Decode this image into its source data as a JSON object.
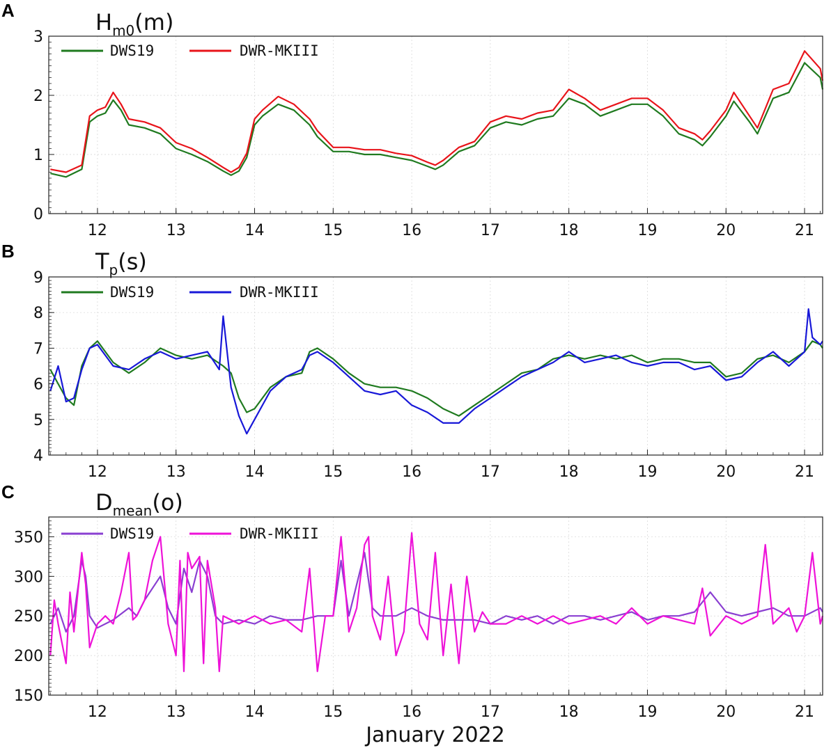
{
  "figure": {
    "xlabel": "January 2022",
    "x_ticks": [
      12,
      13,
      14,
      15,
      16,
      17,
      18,
      19,
      20,
      21
    ],
    "xlim": [
      11.38,
      21.23
    ]
  },
  "chart_data": [
    {
      "id": "A",
      "type": "line",
      "panel_letter": "A",
      "title_main": "H",
      "title_sub": "m0",
      "title_tail": "(m)",
      "ylim": [
        0,
        3
      ],
      "y_ticks": [
        0,
        1,
        2,
        3
      ],
      "legend": "top-left",
      "grid": true,
      "series": [
        {
          "name": "DWS19",
          "color": "#1f7a1f",
          "x": [
            11.4,
            11.6,
            11.8,
            11.9,
            12.0,
            12.1,
            12.2,
            12.3,
            12.4,
            12.6,
            12.8,
            13.0,
            13.2,
            13.4,
            13.6,
            13.7,
            13.8,
            13.9,
            14.0,
            14.1,
            14.3,
            14.5,
            14.7,
            14.8,
            15.0,
            15.2,
            15.4,
            15.6,
            15.8,
            16.0,
            16.2,
            16.3,
            16.4,
            16.6,
            16.8,
            17.0,
            17.2,
            17.4,
            17.6,
            17.8,
            18.0,
            18.2,
            18.4,
            18.6,
            18.8,
            19.0,
            19.2,
            19.4,
            19.6,
            19.7,
            19.8,
            20.0,
            20.1,
            20.3,
            20.4,
            20.6,
            20.8,
            21.0,
            21.2,
            21.23
          ],
          "y": [
            0.68,
            0.62,
            0.75,
            1.55,
            1.65,
            1.7,
            1.92,
            1.75,
            1.5,
            1.45,
            1.35,
            1.1,
            1.0,
            0.88,
            0.72,
            0.65,
            0.72,
            0.95,
            1.5,
            1.65,
            1.85,
            1.75,
            1.5,
            1.3,
            1.05,
            1.05,
            1.0,
            1.0,
            0.95,
            0.9,
            0.8,
            0.75,
            0.82,
            1.05,
            1.15,
            1.45,
            1.55,
            1.5,
            1.6,
            1.65,
            1.95,
            1.85,
            1.65,
            1.75,
            1.85,
            1.85,
            1.65,
            1.35,
            1.25,
            1.15,
            1.3,
            1.65,
            1.9,
            1.55,
            1.35,
            1.95,
            2.05,
            2.55,
            2.3,
            2.1
          ]
        },
        {
          "name": "DWR-MKIII",
          "color": "#e8141a",
          "x": [
            11.4,
            11.6,
            11.8,
            11.9,
            12.0,
            12.1,
            12.2,
            12.3,
            12.4,
            12.6,
            12.8,
            13.0,
            13.2,
            13.4,
            13.6,
            13.7,
            13.8,
            13.9,
            14.0,
            14.1,
            14.3,
            14.5,
            14.7,
            14.8,
            15.0,
            15.2,
            15.4,
            15.6,
            15.8,
            16.0,
            16.2,
            16.3,
            16.4,
            16.6,
            16.8,
            17.0,
            17.2,
            17.4,
            17.6,
            17.8,
            18.0,
            18.2,
            18.4,
            18.6,
            18.8,
            19.0,
            19.2,
            19.4,
            19.6,
            19.7,
            19.8,
            20.0,
            20.1,
            20.3,
            20.4,
            20.6,
            20.8,
            21.0,
            21.2,
            21.23
          ],
          "y": [
            0.75,
            0.7,
            0.82,
            1.65,
            1.75,
            1.8,
            2.05,
            1.85,
            1.6,
            1.55,
            1.45,
            1.2,
            1.1,
            0.95,
            0.78,
            0.7,
            0.78,
            1.02,
            1.6,
            1.75,
            1.98,
            1.85,
            1.6,
            1.4,
            1.12,
            1.12,
            1.08,
            1.08,
            1.02,
            0.98,
            0.87,
            0.82,
            0.9,
            1.12,
            1.22,
            1.55,
            1.65,
            1.6,
            1.7,
            1.75,
            2.1,
            1.95,
            1.75,
            1.85,
            1.95,
            1.95,
            1.75,
            1.45,
            1.35,
            1.25,
            1.4,
            1.75,
            2.05,
            1.65,
            1.45,
            2.1,
            2.2,
            2.75,
            2.45,
            2.25
          ]
        }
      ]
    },
    {
      "id": "B",
      "type": "line",
      "panel_letter": "B",
      "title_main": "T",
      "title_sub": "p",
      "title_tail": "(s)",
      "ylim": [
        4,
        9
      ],
      "y_ticks": [
        4,
        5,
        6,
        7,
        8,
        9
      ],
      "legend": "top-left",
      "grid": true,
      "series": [
        {
          "name": "DWS19",
          "color": "#1f7a1f",
          "x": [
            11.4,
            11.5,
            11.6,
            11.7,
            11.8,
            11.9,
            12.0,
            12.2,
            12.4,
            12.6,
            12.8,
            13.0,
            13.2,
            13.4,
            13.6,
            13.7,
            13.8,
            13.9,
            14.0,
            14.2,
            14.4,
            14.6,
            14.7,
            14.8,
            15.0,
            15.2,
            15.4,
            15.6,
            15.8,
            16.0,
            16.2,
            16.4,
            16.6,
            16.8,
            17.0,
            17.2,
            17.4,
            17.6,
            17.8,
            18.0,
            18.2,
            18.4,
            18.6,
            18.8,
            19.0,
            19.2,
            19.4,
            19.6,
            19.8,
            20.0,
            20.2,
            20.4,
            20.6,
            20.8,
            21.0,
            21.1,
            21.2,
            21.23
          ],
          "y": [
            6.4,
            6.0,
            5.6,
            5.4,
            6.5,
            7.0,
            7.2,
            6.6,
            6.3,
            6.6,
            7.0,
            6.8,
            6.7,
            6.8,
            6.5,
            6.3,
            5.6,
            5.2,
            5.3,
            5.9,
            6.2,
            6.3,
            6.9,
            7.0,
            6.7,
            6.3,
            6.0,
            5.9,
            5.9,
            5.8,
            5.6,
            5.3,
            5.1,
            5.4,
            5.7,
            6.0,
            6.3,
            6.4,
            6.7,
            6.8,
            6.7,
            6.8,
            6.7,
            6.8,
            6.6,
            6.7,
            6.7,
            6.6,
            6.6,
            6.2,
            6.3,
            6.7,
            6.8,
            6.6,
            6.9,
            7.2,
            7.1,
            7.0
          ]
        },
        {
          "name": "DWR-MKIII",
          "color": "#1818d8",
          "x": [
            11.4,
            11.5,
            11.6,
            11.7,
            11.8,
            11.9,
            12.0,
            12.2,
            12.4,
            12.6,
            12.8,
            13.0,
            13.2,
            13.4,
            13.55,
            13.6,
            13.7,
            13.8,
            13.9,
            14.0,
            14.2,
            14.4,
            14.6,
            14.7,
            14.8,
            15.0,
            15.2,
            15.4,
            15.6,
            15.8,
            16.0,
            16.2,
            16.4,
            16.6,
            16.8,
            17.0,
            17.2,
            17.4,
            17.6,
            17.8,
            18.0,
            18.2,
            18.4,
            18.6,
            18.8,
            19.0,
            19.2,
            19.4,
            19.6,
            19.8,
            20.0,
            20.2,
            20.4,
            20.6,
            20.8,
            21.0,
            21.05,
            21.1,
            21.2,
            21.23
          ],
          "y": [
            5.8,
            6.5,
            5.5,
            5.6,
            6.4,
            7.0,
            7.1,
            6.5,
            6.4,
            6.7,
            6.9,
            6.7,
            6.8,
            6.9,
            6.4,
            7.9,
            5.9,
            5.1,
            4.6,
            5.0,
            5.8,
            6.2,
            6.4,
            6.8,
            6.9,
            6.6,
            6.2,
            5.8,
            5.7,
            5.8,
            5.4,
            5.2,
            4.9,
            4.9,
            5.3,
            5.6,
            5.9,
            6.2,
            6.4,
            6.6,
            6.9,
            6.6,
            6.7,
            6.8,
            6.6,
            6.5,
            6.6,
            6.6,
            6.4,
            6.5,
            6.1,
            6.2,
            6.6,
            6.9,
            6.5,
            6.9,
            8.1,
            7.3,
            7.1,
            7.2
          ]
        }
      ]
    },
    {
      "id": "C",
      "type": "line",
      "panel_letter": "C",
      "title_main": "D",
      "title_sub": "mean",
      "title_tail": "(o)",
      "ylim": [
        150,
        375
      ],
      "y_ticks": [
        150,
        200,
        250,
        300,
        350
      ],
      "legend": "top-left",
      "grid": true,
      "series": [
        {
          "name": "DWS19",
          "color": "#8a3fd1",
          "x": [
            11.4,
            11.5,
            11.6,
            11.7,
            11.8,
            11.85,
            11.9,
            12.0,
            12.2,
            12.4,
            12.5,
            12.6,
            12.8,
            12.9,
            13.0,
            13.1,
            13.2,
            13.3,
            13.4,
            13.5,
            13.6,
            13.8,
            14.0,
            14.2,
            14.4,
            14.6,
            14.8,
            15.0,
            15.1,
            15.2,
            15.4,
            15.5,
            15.6,
            15.8,
            16.0,
            16.2,
            16.4,
            16.6,
            16.8,
            17.0,
            17.2,
            17.4,
            17.6,
            17.8,
            18.0,
            18.2,
            18.4,
            18.6,
            18.8,
            19.0,
            19.2,
            19.4,
            19.6,
            19.8,
            20.0,
            20.2,
            20.4,
            20.6,
            20.8,
            21.0,
            21.2,
            21.23
          ],
          "y": [
            240,
            260,
            230,
            250,
            320,
            300,
            250,
            235,
            245,
            260,
            250,
            270,
            300,
            260,
            240,
            310,
            280,
            320,
            300,
            250,
            240,
            245,
            240,
            250,
            245,
            245,
            250,
            250,
            320,
            250,
            330,
            260,
            250,
            250,
            260,
            250,
            245,
            245,
            245,
            240,
            250,
            245,
            250,
            240,
            250,
            250,
            245,
            250,
            255,
            245,
            250,
            250,
            255,
            280,
            255,
            250,
            255,
            260,
            250,
            250,
            260,
            255
          ]
        },
        {
          "name": "DWR-MKIII",
          "color": "#ee12d8",
          "x": [
            11.4,
            11.45,
            11.5,
            11.6,
            11.65,
            11.7,
            11.8,
            11.85,
            11.9,
            12.0,
            12.1,
            12.2,
            12.3,
            12.4,
            12.45,
            12.5,
            12.6,
            12.7,
            12.8,
            12.9,
            13.0,
            13.05,
            13.1,
            13.15,
            13.2,
            13.3,
            13.35,
            13.4,
            13.5,
            13.55,
            13.6,
            13.7,
            13.8,
            13.9,
            14.0,
            14.2,
            14.4,
            14.6,
            14.7,
            14.8,
            14.9,
            15.0,
            15.1,
            15.2,
            15.3,
            15.4,
            15.45,
            15.5,
            15.6,
            15.7,
            15.8,
            15.9,
            16.0,
            16.1,
            16.2,
            16.3,
            16.4,
            16.5,
            16.6,
            16.7,
            16.8,
            16.9,
            17.0,
            17.2,
            17.4,
            17.6,
            17.8,
            18.0,
            18.2,
            18.4,
            18.6,
            18.8,
            19.0,
            19.2,
            19.4,
            19.6,
            19.7,
            19.8,
            20.0,
            20.2,
            20.4,
            20.5,
            20.6,
            20.8,
            20.9,
            21.0,
            21.1,
            21.2,
            21.23
          ],
          "y": [
            200,
            270,
            240,
            190,
            280,
            230,
            330,
            290,
            210,
            240,
            250,
            240,
            280,
            330,
            245,
            250,
            270,
            320,
            350,
            240,
            200,
            320,
            180,
            330,
            310,
            325,
            190,
            320,
            260,
            180,
            250,
            245,
            240,
            245,
            250,
            240,
            245,
            230,
            310,
            180,
            250,
            250,
            350,
            230,
            260,
            340,
            350,
            250,
            220,
            300,
            200,
            230,
            355,
            240,
            220,
            330,
            200,
            290,
            190,
            300,
            230,
            255,
            240,
            240,
            250,
            240,
            250,
            240,
            245,
            250,
            240,
            260,
            240,
            250,
            245,
            240,
            285,
            225,
            250,
            240,
            250,
            340,
            240,
            260,
            230,
            250,
            330,
            240,
            250
          ]
        }
      ]
    }
  ]
}
